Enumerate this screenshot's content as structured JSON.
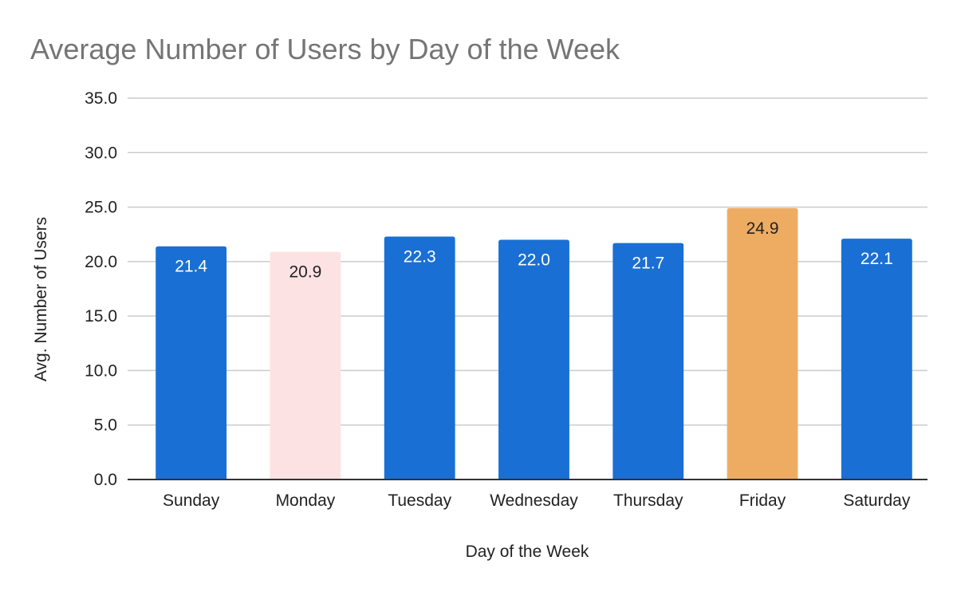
{
  "chart_data": {
    "type": "bar",
    "title": "Average Number of Users by Day of the Week",
    "xlabel": "Day of the Week",
    "ylabel": "Avg. Number of Users",
    "categories": [
      "Sunday",
      "Monday",
      "Tuesday",
      "Wednesday",
      "Thursday",
      "Friday",
      "Saturday"
    ],
    "values": [
      21.4,
      20.9,
      22.3,
      22.0,
      21.7,
      24.9,
      22.1
    ],
    "value_labels": [
      "21.4",
      "20.9",
      "22.3",
      "22.0",
      "21.7",
      "24.9",
      "22.1"
    ],
    "ylim": [
      0,
      35
    ],
    "yticks": [
      0,
      5,
      10,
      15,
      20,
      25,
      30,
      35
    ],
    "ytick_labels": [
      "0.0",
      "5.0",
      "10.0",
      "15.0",
      "20.0",
      "25.0",
      "30.0",
      "35.0"
    ],
    "grid": true,
    "legend": "none",
    "bar_colors": [
      "#1a6fd4",
      "#fde2e4",
      "#1a6fd4",
      "#1a6fd4",
      "#1a6fd4",
      "#eeac63",
      "#1a6fd4"
    ],
    "label_colors": [
      "#ffffff",
      "#222222",
      "#ffffff",
      "#ffffff",
      "#ffffff",
      "#222222",
      "#ffffff"
    ]
  }
}
